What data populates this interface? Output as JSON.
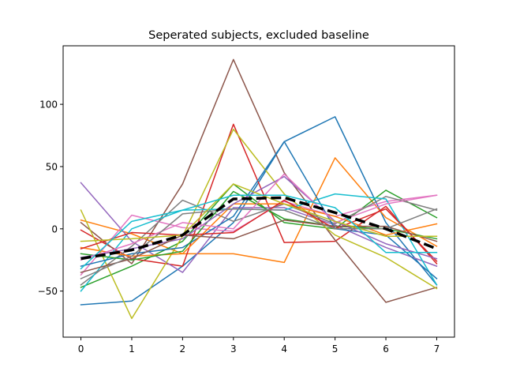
{
  "chart_data": {
    "type": "line",
    "title": "Seperated subjects, excluded baseline",
    "xlabel": "",
    "ylabel": "",
    "x": [
      0,
      1,
      2,
      3,
      4,
      5,
      6,
      7
    ],
    "xlim": [
      -0.35,
      7.35
    ],
    "ylim": [
      -87,
      147
    ],
    "xticks": [
      "0",
      "1",
      "2",
      "3",
      "4",
      "5",
      "6",
      "7"
    ],
    "yticks": [
      -50,
      0,
      50,
      100
    ],
    "ytick_labels": [
      "−50",
      "0",
      "50",
      "100"
    ],
    "grid": false,
    "legend": "none",
    "series": [
      {
        "color": "#1f77b4",
        "values": [
          -61,
          -58,
          -30,
          5,
          70,
          90,
          5,
          -45
        ]
      },
      {
        "color": "#ff7f0e",
        "values": [
          7,
          -4,
          -20,
          -20,
          -27,
          57,
          9,
          -14
        ]
      },
      {
        "color": "#2ca02c",
        "values": [
          -47,
          -30,
          -10,
          36,
          5,
          0,
          31,
          9
        ]
      },
      {
        "color": "#d62728",
        "values": [
          -1,
          -24,
          -30,
          84,
          -11,
          -10,
          18,
          -28
        ]
      },
      {
        "color": "#9467bd",
        "values": [
          37,
          -10,
          -35,
          17,
          17,
          3,
          -15,
          -30
        ]
      },
      {
        "color": "#8c564b",
        "values": [
          5,
          -28,
          36,
          136,
          45,
          -9,
          -59,
          -47
        ]
      },
      {
        "color": "#e377c2",
        "values": [
          -37,
          11,
          1,
          -2,
          22,
          10,
          22,
          27
        ]
      },
      {
        "color": "#7f7f7f",
        "values": [
          -45,
          -14,
          23,
          6,
          20,
          4,
          26,
          15
        ]
      },
      {
        "color": "#bcbd22",
        "values": [
          15,
          -72,
          -6,
          80,
          28,
          -5,
          -23,
          -48
        ]
      },
      {
        "color": "#17becf",
        "values": [
          -50,
          0,
          15,
          16,
          15,
          28,
          24,
          -45
        ]
      },
      {
        "color": "#1f77b4",
        "values": [
          -30,
          -20,
          -15,
          10,
          70,
          0,
          -5,
          -40
        ]
      },
      {
        "color": "#ff7f0e",
        "values": [
          -15,
          -22,
          -20,
          20,
          20,
          10,
          -5,
          4
        ]
      },
      {
        "color": "#2ca02c",
        "values": [
          -20,
          -25,
          -18,
          30,
          8,
          2,
          0,
          -8
        ]
      },
      {
        "color": "#d62728",
        "values": [
          -16,
          -3,
          -5,
          -3,
          23,
          0,
          16,
          -26
        ]
      },
      {
        "color": "#9467bd",
        "values": [
          -23,
          -16,
          -8,
          20,
          42,
          6,
          -12,
          -24
        ]
      },
      {
        "color": "#8c564b",
        "values": [
          -35,
          -24,
          -5,
          -8,
          7,
          2,
          2,
          -10
        ]
      },
      {
        "color": "#e377c2",
        "values": [
          -25,
          -12,
          5,
          0,
          44,
          5,
          20,
          27
        ]
      },
      {
        "color": "#7f7f7f",
        "values": [
          -40,
          -22,
          12,
          16,
          15,
          0,
          0,
          16
        ]
      },
      {
        "color": "#bcbd22",
        "values": [
          -10,
          -8,
          -5,
          36,
          20,
          6,
          -6,
          -6
        ]
      },
      {
        "color": "#17becf",
        "values": [
          -32,
          6,
          15,
          27,
          27,
          17,
          -19,
          -19
        ]
      },
      {
        "color": "#000000",
        "dashed": true,
        "values": [
          -24,
          -17,
          -5,
          24,
          25,
          13,
          0,
          -16
        ]
      }
    ]
  }
}
